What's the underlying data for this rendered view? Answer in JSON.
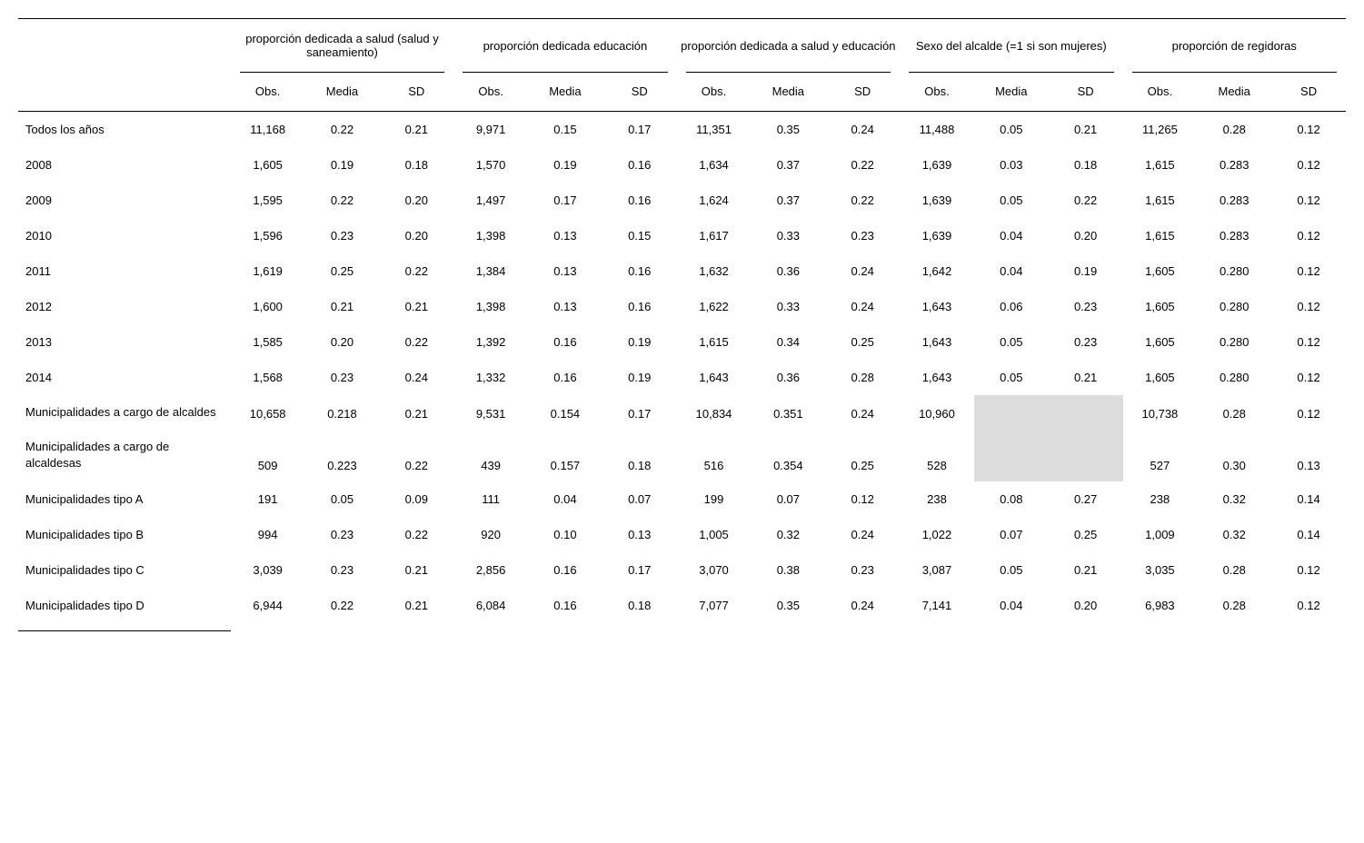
{
  "table": {
    "type": "table",
    "background_color": "#ffffff",
    "text_color": "#000000",
    "border_color": "#000000",
    "shaded_color": "#dddddd",
    "font_family": "Arial",
    "header_fontsize": 13,
    "body_fontsize": 13,
    "groups": [
      "proporción dedicada a salud (salud y saneamiento)",
      "proporción dedicada educación",
      "proporción dedicada a salud y educación",
      "Sexo del alcalde (=1 si son mujeres)",
      "proporción de regidoras"
    ],
    "subheaders": [
      "Obs.",
      "Media",
      "SD"
    ],
    "rows": [
      {
        "label": "Todos los años",
        "cells": [
          "11,168",
          "0.22",
          "0.21",
          "9,971",
          "0.15",
          "0.17",
          "11,351",
          "0.35",
          "0.24",
          "11,488",
          "0.05",
          "0.21",
          "11,265",
          "0.28",
          "0.12"
        ]
      },
      {
        "label": "2008",
        "cells": [
          "1,605",
          "0.19",
          "0.18",
          "1,570",
          "0.19",
          "0.16",
          "1,634",
          "0.37",
          "0.22",
          "1,639",
          "0.03",
          "0.18",
          "1,615",
          "0.283",
          "0.12"
        ]
      },
      {
        "label": "2009",
        "cells": [
          "1,595",
          "0.22",
          "0.20",
          "1,497",
          "0.17",
          "0.16",
          "1,624",
          "0.37",
          "0.22",
          "1,639",
          "0.05",
          "0.22",
          "1,615",
          "0.283",
          "0.12"
        ]
      },
      {
        "label": "2010",
        "cells": [
          "1,596",
          "0.23",
          "0.20",
          "1,398",
          "0.13",
          "0.15",
          "1,617",
          "0.33",
          "0.23",
          "1,639",
          "0.04",
          "0.20",
          "1,615",
          "0.283",
          "0.12"
        ]
      },
      {
        "label": "2011",
        "cells": [
          "1,619",
          "0.25",
          "0.22",
          "1,384",
          "0.13",
          "0.16",
          "1,632",
          "0.36",
          "0.24",
          "1,642",
          "0.04",
          "0.19",
          "1,605",
          "0.280",
          "0.12"
        ]
      },
      {
        "label": "2012",
        "cells": [
          "1,600",
          "0.21",
          "0.21",
          "1,398",
          "0.13",
          "0.16",
          "1,622",
          "0.33",
          "0.24",
          "1,643",
          "0.06",
          "0.23",
          "1,605",
          "0.280",
          "0.12"
        ]
      },
      {
        "label": "2013",
        "cells": [
          "1,585",
          "0.20",
          "0.22",
          "1,392",
          "0.16",
          "0.19",
          "1,615",
          "0.34",
          "0.25",
          "1,643",
          "0.05",
          "0.23",
          "1,605",
          "0.280",
          "0.12"
        ]
      },
      {
        "label": "2014",
        "cells": [
          "1,568",
          "0.23",
          "0.24",
          "1,332",
          "0.16",
          "0.19",
          "1,643",
          "0.36",
          "0.28",
          "1,643",
          "0.05",
          "0.21",
          "1,605",
          "0.280",
          "0.12"
        ]
      },
      {
        "label": "Municipalidades a cargo de alcaldes",
        "tall": true,
        "cells": [
          "10,658",
          "0.218",
          "0.21",
          "9,531",
          "0.154",
          "0.17",
          "10,834",
          "0.351",
          "0.24",
          "10,960",
          "",
          "",
          "10,738",
          "0.28",
          "0.12"
        ],
        "shaded_cols": [
          10,
          11
        ]
      },
      {
        "label": "Municipalidades a cargo de alcaldesas",
        "tall": true,
        "cells": [
          "509",
          "0.223",
          "0.22",
          "439",
          "0.157",
          "0.18",
          "516",
          "0.354",
          "0.25",
          "528",
          "",
          "",
          "527",
          "0.30",
          "0.13"
        ],
        "shaded_cols": [
          10,
          11
        ]
      },
      {
        "label": "Municipalidades tipo A",
        "cells": [
          "191",
          "0.05",
          "0.09",
          "111",
          "0.04",
          "0.07",
          "199",
          "0.07",
          "0.12",
          "238",
          "0.08",
          "0.27",
          "238",
          "0.32",
          "0.14"
        ]
      },
      {
        "label": "Municipalidades tipo B",
        "cells": [
          "994",
          "0.23",
          "0.22",
          "920",
          "0.10",
          "0.13",
          "1,005",
          "0.32",
          "0.24",
          "1,022",
          "0.07",
          "0.25",
          "1,009",
          "0.32",
          "0.14"
        ]
      },
      {
        "label": "Municipalidades tipo C",
        "cells": [
          "3,039",
          "0.23",
          "0.21",
          "2,856",
          "0.16",
          "0.17",
          "3,070",
          "0.38",
          "0.23",
          "3,087",
          "0.05",
          "0.21",
          "3,035",
          "0.28",
          "0.12"
        ]
      },
      {
        "label": "Municipalidades tipo D",
        "cells": [
          "6,944",
          "0.22",
          "0.21",
          "6,084",
          "0.16",
          "0.18",
          "7,077",
          "0.35",
          "0.24",
          "7,141",
          "0.04",
          "0.20",
          "6,983",
          "0.28",
          "0.12"
        ]
      }
    ]
  }
}
